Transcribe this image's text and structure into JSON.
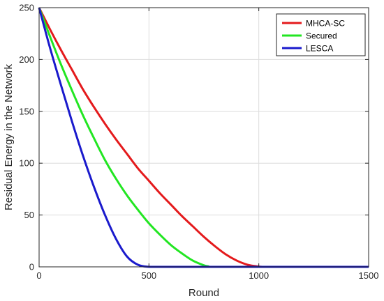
{
  "chart_data": {
    "type": "line",
    "title": "",
    "xlabel": "Round",
    "ylabel": "Residual Energy in the Network",
    "xlim": [
      0,
      1500
    ],
    "ylim": [
      0,
      250
    ],
    "xticks": [
      0,
      500,
      1000,
      1500
    ],
    "yticks": [
      0,
      50,
      100,
      150,
      200,
      250
    ],
    "grid": true,
    "legend_position": "top-right",
    "series": [
      {
        "name": "MHCA-SC",
        "color": "#e41a1c",
        "x": [
          0,
          50,
          100,
          150,
          200,
          250,
          300,
          350,
          400,
          450,
          500,
          550,
          600,
          650,
          700,
          750,
          800,
          850,
          900,
          950,
          1000,
          1020,
          1050
        ],
        "y": [
          250,
          229,
          209,
          190,
          171,
          154,
          138,
          123,
          109,
          95,
          83,
          71,
          60,
          49,
          39,
          29,
          20,
          12,
          6,
          2,
          0.3,
          0,
          0
        ]
      },
      {
        "name": "Secured",
        "color": "#22e622",
        "x": [
          0,
          50,
          100,
          150,
          200,
          250,
          300,
          350,
          400,
          450,
          500,
          550,
          600,
          650,
          700,
          750,
          770,
          780,
          840,
          1000,
          1200
        ],
        "y": [
          250,
          222,
          195,
          170,
          146,
          124,
          103,
          85,
          69,
          55,
          42,
          31,
          21,
          13,
          6,
          1.5,
          0.5,
          0,
          0,
          0,
          0
        ]
      },
      {
        "name": "LESCA",
        "color": "#1a1acc",
        "x": [
          0,
          50,
          100,
          150,
          200,
          250,
          300,
          350,
          400,
          450,
          500,
          550,
          575,
          600,
          900,
          1200,
          1500
        ],
        "y": [
          250,
          211,
          175,
          140,
          107,
          77,
          50,
          27,
          10,
          2,
          0,
          0,
          0,
          0,
          0,
          0,
          0
        ]
      }
    ]
  }
}
